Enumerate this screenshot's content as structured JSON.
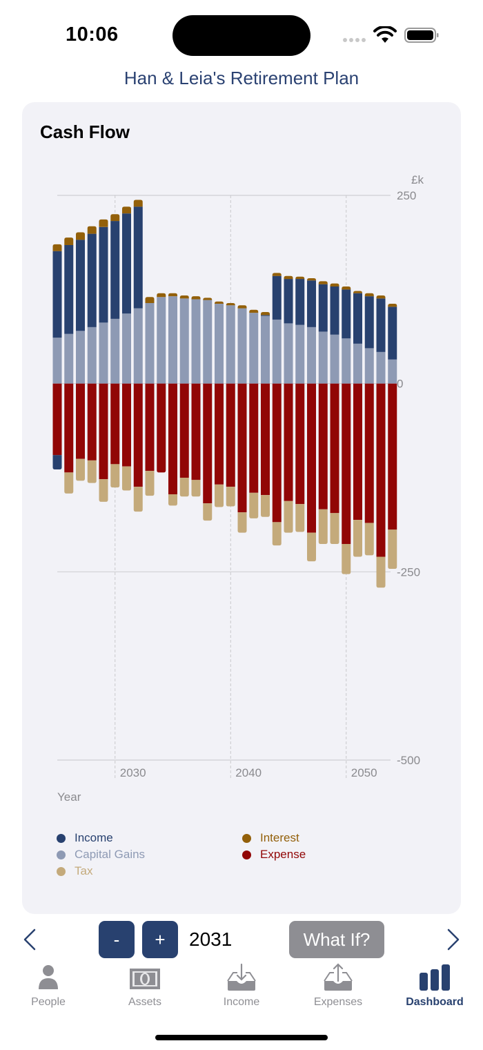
{
  "status_bar": {
    "time": "10:06",
    "icons": [
      "cellular-signal-icon",
      "wifi-icon",
      "battery-icon"
    ]
  },
  "app_title": "Han & Leia's Retirement Plan",
  "card": {
    "title": "Cash Flow"
  },
  "colors": {
    "income": "#28416f",
    "capital_gains": "#8e9ab4",
    "tax": "#c4aa7b",
    "interest": "#93600a",
    "expense": "#910606",
    "brand": "#28416f",
    "axis_text": "#8a8a8e"
  },
  "chart_data": {
    "type": "bar",
    "stacked": true,
    "title": "Cash Flow",
    "xlabel": "Year",
    "ylabel": "£k",
    "ylim": [
      -500,
      250
    ],
    "yticks": [
      250,
      0,
      -250,
      -500
    ],
    "ytick_labels": [
      "250",
      "0",
      "-250",
      "-500"
    ],
    "xticks": [
      2030,
      2040,
      2050
    ],
    "xtick_labels": [
      "2030",
      "2040",
      "2050"
    ],
    "grid": true,
    "legend_position": "bottom",
    "categories": [
      2025,
      2026,
      2027,
      2028,
      2029,
      2030,
      2031,
      2032,
      2033,
      2034,
      2035,
      2036,
      2037,
      2038,
      2039,
      2040,
      2041,
      2042,
      2043,
      2044,
      2045,
      2046,
      2047,
      2048,
      2049,
      2050,
      2051,
      2052,
      2053,
      2054
    ],
    "series": [
      {
        "name": "Capital Gains",
        "key": "capital_gains",
        "values": [
          61,
          66,
          70,
          75,
          81,
          86,
          93,
          100,
          107,
          115,
          116,
          113,
          112,
          111,
          106,
          104,
          100,
          94,
          90,
          85,
          80,
          78,
          75,
          69,
          65,
          60,
          53,
          47,
          42,
          32
        ]
      },
      {
        "name": "Income",
        "key": "income",
        "values": [
          115,
          118,
          121,
          124,
          127,
          130,
          133,
          135,
          0,
          0,
          0,
          0,
          0,
          0,
          0,
          0,
          0,
          0,
          1,
          58,
          59,
          61,
          62,
          63,
          64,
          65,
          67,
          69,
          71,
          70
        ]
      },
      {
        "name": "Interest",
        "key": "interest",
        "values": [
          9,
          10,
          10,
          10,
          10,
          9,
          9,
          9,
          8,
          5,
          4,
          4,
          4,
          3,
          3,
          3,
          4,
          4,
          4,
          4,
          4,
          3,
          3,
          4,
          4,
          4,
          3,
          4,
          4,
          4
        ]
      },
      {
        "name": "Expense",
        "key": "expense",
        "values": [
          -95,
          -118,
          -100,
          -102,
          -127,
          -107,
          -110,
          -137,
          -116,
          -118,
          -147,
          -125,
          -128,
          -159,
          -134,
          -137,
          -171,
          -145,
          -148,
          -184,
          -156,
          -160,
          -198,
          -167,
          -172,
          -213,
          -181,
          -185,
          -230,
          -194
        ]
      },
      {
        "name": "Income (negative)",
        "key": "income",
        "values": [
          -19,
          0,
          0,
          0,
          0,
          0,
          0,
          0,
          0,
          0,
          0,
          0,
          0,
          0,
          0,
          0,
          0,
          0,
          0,
          0,
          0,
          0,
          0,
          0,
          0,
          0,
          0,
          0,
          0,
          0
        ]
      },
      {
        "name": "Tax",
        "key": "tax",
        "values": [
          0,
          -28,
          -29,
          -30,
          -30,
          -31,
          -32,
          -33,
          -33,
          0,
          -15,
          -25,
          -22,
          -23,
          -30,
          -26,
          -27,
          -34,
          -29,
          -31,
          -42,
          -37,
          -38,
          -46,
          -41,
          -40,
          -49,
          -43,
          -41,
          -52
        ]
      }
    ],
    "legend": [
      {
        "label": "Income",
        "key": "income"
      },
      {
        "label": "Capital Gains",
        "key": "capital_gains"
      },
      {
        "label": "Tax",
        "key": "tax"
      },
      {
        "label": "Interest",
        "key": "interest"
      },
      {
        "label": "Expense",
        "key": "expense"
      }
    ]
  },
  "controls": {
    "prev_icon": "chevron-left-icon",
    "decrement_label": "-",
    "increment_label": "+",
    "selected_year": "2031",
    "what_if_label": "What If?",
    "next_icon": "chevron-right-icon"
  },
  "tab_bar": {
    "items": [
      {
        "label": "People",
        "icon": "person-icon",
        "active": false
      },
      {
        "label": "Assets",
        "icon": "banknote-icon",
        "active": false
      },
      {
        "label": "Income",
        "icon": "tray-download-icon",
        "active": false
      },
      {
        "label": "Expenses",
        "icon": "tray-upload-icon",
        "active": false
      },
      {
        "label": "Dashboard",
        "icon": "bar-chart-icon",
        "active": true
      }
    ]
  }
}
